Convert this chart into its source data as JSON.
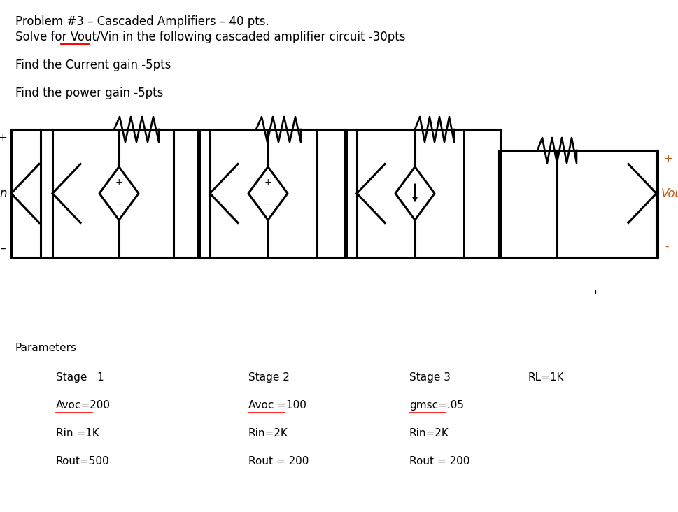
{
  "title_line1": "Problem #3 – Cascaded Amplifiers – 40 pts.",
  "title_line2": "Solve for Vout/Vin in the following cascaded amplifier circuit -30pts",
  "line3": "Find the Current gain -5pts",
  "line4": "Find the power gain -5pts",
  "params_title": "Parameters",
  "col1_header": "Stage   1",
  "col2_header": "Stage 2",
  "col3_header": "Stage 3",
  "col4_header": "RL=1K",
  "col1_row1": "Avoc=200",
  "col2_row1": "Avoc =100",
  "col3_row1": "gmsc=.05",
  "col1_row2": "Rin =1K",
  "col2_row2": "Rin=2K",
  "col3_row2": "Rin=2K",
  "col1_row3": "Rout=500",
  "col2_row3": "Rout = 200",
  "col3_row3": "Rout = 200",
  "bg_color": "#ffffff",
  "text_color": "#000000",
  "vin_color": "#000000",
  "vout_color": "#c55a11",
  "red_color": "#ff0000",
  "font_size_title": 12,
  "font_size_body": 12,
  "font_size_params": 11,
  "circuit_lw": 2.2
}
